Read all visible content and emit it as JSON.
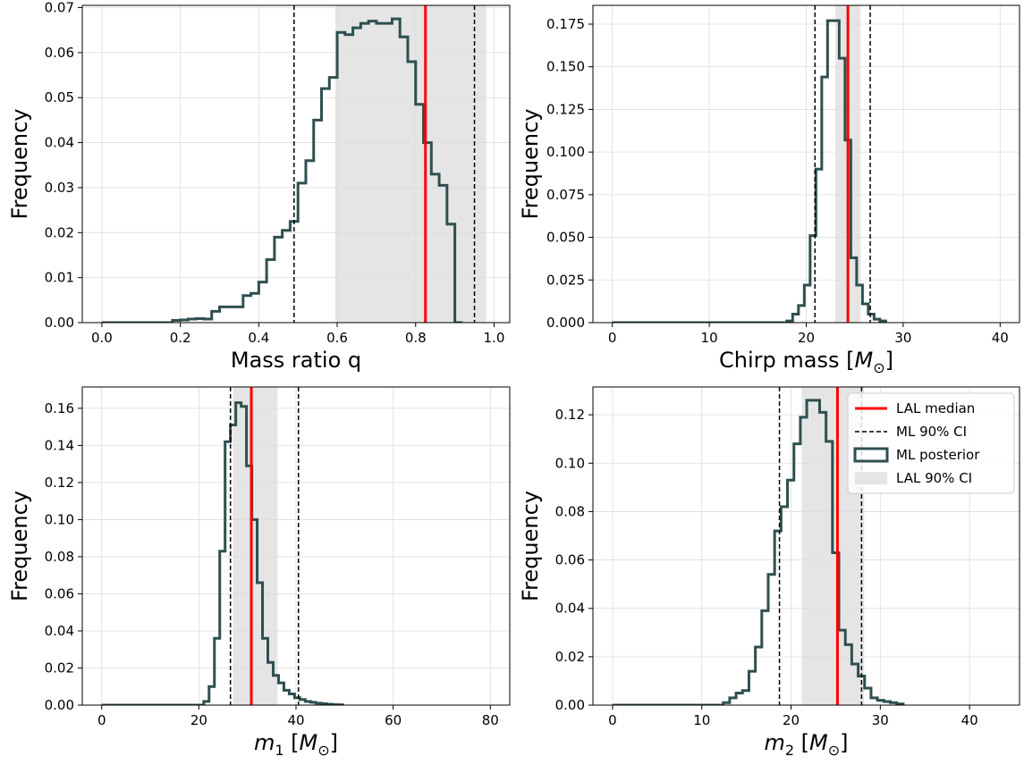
{
  "colors": {
    "histogram": "#2f4f4f",
    "median": "#ff0000",
    "ml_ci": "#000000",
    "lal_ci_fill": "#e5e5e5",
    "grid": "#dddddd"
  },
  "legend": {
    "items": [
      {
        "label": "LAL median",
        "style": "red-line"
      },
      {
        "label": "ML 90% CI",
        "style": "dashed-line"
      },
      {
        "label": "ML posterior",
        "style": "hist-box"
      },
      {
        "label": "LAL 90% CI",
        "style": "gray-patch"
      }
    ]
  },
  "chart_data": [
    {
      "type": "histogram",
      "xlabel": "Mass ratio q",
      "ylabel": "Frequency",
      "xlim": [
        -0.05,
        1.04
      ],
      "ylim": [
        0,
        0.0705
      ],
      "xticks": [
        {
          "v": 0.0,
          "t": "0.0"
        },
        {
          "v": 0.2,
          "t": "0.2"
        },
        {
          "v": 0.4,
          "t": "0.4"
        },
        {
          "v": 0.6,
          "t": "0.6"
        },
        {
          "v": 0.8,
          "t": "0.8"
        },
        {
          "v": 1.0,
          "t": "1.0"
        }
      ],
      "yticks": [
        {
          "v": 0,
          "t": "0.00"
        },
        {
          "v": 0.01,
          "t": "0.01"
        },
        {
          "v": 0.02,
          "t": "0.02"
        },
        {
          "v": 0.03,
          "t": "0.03"
        },
        {
          "v": 0.04,
          "t": "0.04"
        },
        {
          "v": 0.05,
          "t": "0.05"
        },
        {
          "v": 0.06,
          "t": "0.06"
        },
        {
          "v": 0.07,
          "t": "0.07"
        }
      ],
      "bin_start": 0.18,
      "bin_width": 0.02,
      "values": [
        0.0005,
        0.0006,
        0.0008,
        0.0009,
        0.0008,
        0.0025,
        0.0035,
        0.0035,
        0.0035,
        0.006,
        0.0065,
        0.009,
        0.014,
        0.019,
        0.0205,
        0.0225,
        0.031,
        0.036,
        0.045,
        0.052,
        0.0545,
        0.0645,
        0.064,
        0.0655,
        0.0665,
        0.067,
        0.0665,
        0.0665,
        0.0675,
        0.0635,
        0.058,
        0.0485,
        0.04,
        0.033,
        0.0305,
        0.0219,
        0.0
      ],
      "lal_median": 0.825,
      "lal_ci": [
        0.595,
        0.98
      ],
      "ml_ci": [
        0.49,
        0.95
      ]
    },
    {
      "type": "histogram",
      "xlabel": "Chirp mass",
      "xlabel_unit": "M⊙",
      "ylabel": "Frequency",
      "xlim": [
        -2,
        42
      ],
      "ylim": [
        0,
        0.186
      ],
      "xticks": [
        {
          "v": 0,
          "t": "0"
        },
        {
          "v": 10,
          "t": "10"
        },
        {
          "v": 20,
          "t": "20"
        },
        {
          "v": 30,
          "t": "30"
        },
        {
          "v": 40,
          "t": "40"
        }
      ],
      "yticks": [
        {
          "v": 0,
          "t": "0.000"
        },
        {
          "v": 0.025,
          "t": "0.025"
        },
        {
          "v": 0.05,
          "t": "0.050"
        },
        {
          "v": 0.075,
          "t": "0.075"
        },
        {
          "v": 0.1,
          "t": "0.100"
        },
        {
          "v": 0.125,
          "t": "0.125"
        },
        {
          "v": 0.15,
          "t": "0.150"
        },
        {
          "v": 0.175,
          "t": "0.175"
        }
      ],
      "bin_start": 18.0,
      "bin_width": 0.6,
      "values": [
        0.001,
        0.005,
        0.01,
        0.022,
        0.051,
        0.09,
        0.144,
        0.177,
        0.177,
        0.155,
        0.107,
        0.038,
        0.022,
        0.011,
        0.005,
        0.002,
        0.001
      ],
      "lal_median": 24.3,
      "lal_ci": [
        23.0,
        25.6
      ],
      "ml_ci": [
        20.9,
        26.6
      ]
    },
    {
      "type": "histogram",
      "xlabel": "m",
      "xlabel_sub": "1",
      "xlabel_unit": "M⊙",
      "ylabel": "Frequency",
      "xlim": [
        -4,
        84
      ],
      "ylim": [
        0,
        0.1715
      ],
      "xticks": [
        {
          "v": 0,
          "t": "0"
        },
        {
          "v": 20,
          "t": "20"
        },
        {
          "v": 40,
          "t": "40"
        },
        {
          "v": 60,
          "t": "60"
        },
        {
          "v": 80,
          "t": "80"
        }
      ],
      "yticks": [
        {
          "v": 0,
          "t": "0.00"
        },
        {
          "v": 0.02,
          "t": "0.02"
        },
        {
          "v": 0.04,
          "t": "0.04"
        },
        {
          "v": 0.06,
          "t": "0.06"
        },
        {
          "v": 0.08,
          "t": "0.08"
        },
        {
          "v": 0.1,
          "t": "0.10"
        },
        {
          "v": 0.12,
          "t": "0.12"
        },
        {
          "v": 0.14,
          "t": "0.14"
        },
        {
          "v": 0.16,
          "t": "0.16"
        }
      ],
      "bin_start": 21.0,
      "bin_width": 1.1,
      "values": [
        0.002,
        0.01,
        0.036,
        0.083,
        0.142,
        0.151,
        0.163,
        0.161,
        0.129,
        0.1,
        0.066,
        0.036,
        0.023,
        0.016,
        0.012,
        0.008,
        0.006,
        0.004,
        0.003,
        0.002,
        0.0015,
        0.001,
        0.0008,
        0.0005,
        0.0003,
        0.0002
      ],
      "lal_median": 30.8,
      "lal_ci": [
        27.0,
        36.2
      ],
      "ml_ci": [
        26.5,
        40.5
      ]
    },
    {
      "type": "histogram",
      "xlabel": "m",
      "xlabel_sub": "2",
      "xlabel_unit": "M⊙",
      "ylabel": "Frequency",
      "xlim": [
        -2.2,
        45.6
      ],
      "ylim": [
        0,
        0.1315
      ],
      "xticks": [
        {
          "v": 0,
          "t": "0"
        },
        {
          "v": 10,
          "t": "10"
        },
        {
          "v": 20,
          "t": "20"
        },
        {
          "v": 30,
          "t": "30"
        },
        {
          "v": 40,
          "t": "40"
        }
      ],
      "yticks": [
        {
          "v": 0,
          "t": "0.00"
        },
        {
          "v": 0.02,
          "t": "0.02"
        },
        {
          "v": 0.04,
          "t": "0.04"
        },
        {
          "v": 0.06,
          "t": "0.06"
        },
        {
          "v": 0.08,
          "t": "0.08"
        },
        {
          "v": 0.1,
          "t": "0.10"
        },
        {
          "v": 0.12,
          "t": "0.12"
        }
      ],
      "bin_start": 12.4,
      "bin_width": 0.72,
      "values": [
        0.001,
        0.003,
        0.005,
        0.006,
        0.014,
        0.024,
        0.039,
        0.054,
        0.072,
        0.082,
        0.093,
        0.108,
        0.119,
        0.126,
        0.126,
        0.121,
        0.109,
        0.063,
        0.031,
        0.025,
        0.017,
        0.012,
        0.007,
        0.003,
        0.002,
        0.0015,
        0.001,
        0.0005
      ],
      "lal_median": 25.2,
      "lal_ci": [
        21.2,
        28.2
      ],
      "ml_ci": [
        18.7,
        27.9
      ]
    }
  ]
}
